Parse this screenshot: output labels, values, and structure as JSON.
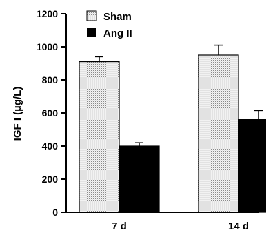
{
  "chart_data": {
    "type": "bar",
    "ylabel": "IGF I (µg/L)",
    "ylim": [
      0,
      1200
    ],
    "yticks": [
      0,
      200,
      400,
      600,
      800,
      1000,
      1200
    ],
    "categories": [
      "7 d",
      "14 d"
    ],
    "series": [
      {
        "name": "Sham",
        "values": [
          910,
          950
        ],
        "errors": [
          30,
          60
        ],
        "fill": "stipple"
      },
      {
        "name": "Ang II",
        "values": [
          400,
          560
        ],
        "errors": [
          20,
          55
        ],
        "fill": "#000000"
      }
    ],
    "legend": "top-left",
    "grid": false
  }
}
